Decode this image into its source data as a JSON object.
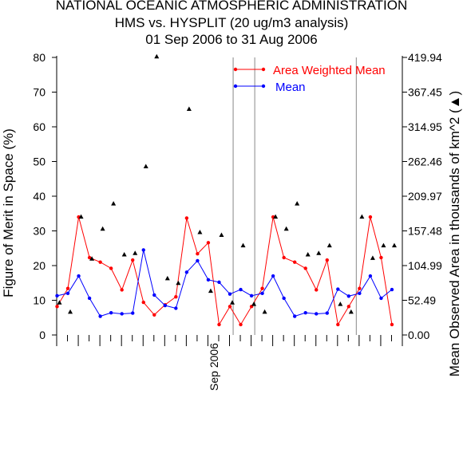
{
  "title": {
    "line1": "NATIONAL OCEANIC ATMOSPHERIC ADMINISTRATION",
    "line2": "HMS vs. HYSPLIT (20 ug/m3 analysis)",
    "line3": "01 Sep 2006 to 31 Aug 2006"
  },
  "chart_data": {
    "type": "line",
    "title": "HMS vs. HYSPLIT (20 ug/m3 analysis)",
    "ylabel": "Figure of Merit in Space (%)",
    "y2label": "Mean Observed Area in thousands of km^2 (▲)",
    "ylim": [
      0,
      80
    ],
    "yticks": [
      0,
      10,
      20,
      30,
      40,
      50,
      60,
      70,
      80
    ],
    "y2lim": [
      0,
      419.94
    ],
    "y2ticks": [
      "0.00",
      "52.49",
      "104.99",
      "157.48",
      "209.97",
      "262.46",
      "314.95",
      "367.45",
      "419.94"
    ],
    "xlim": [
      0,
      32
    ],
    "xtick_label": "Sep 2006",
    "xtick_label_position": 14,
    "vertical_lines": [
      16.3,
      18.3,
      27.7
    ],
    "series": [
      {
        "name": "Area Weighted Mean",
        "color": "#ff0000",
        "x": [
          0,
          1,
          2,
          3,
          4,
          5,
          6,
          7,
          8,
          9,
          10,
          11,
          12,
          13,
          14,
          15,
          16,
          17,
          18,
          19,
          20,
          21,
          22,
          23,
          24,
          25,
          26,
          27,
          28,
          29,
          30,
          31
        ],
        "values": [
          8.2,
          13.4,
          34.0,
          22.3,
          21.0,
          19.2,
          13.0,
          21.6,
          9.4,
          5.8,
          8.7,
          11.0,
          33.7,
          23.4,
          26.6,
          3.0,
          8.2,
          3.0,
          8.2,
          13.4,
          34.0,
          22.3,
          21.0,
          19.2,
          13.0,
          21.6,
          3.0,
          8.2,
          13.4,
          34.0,
          22.3,
          3.0
        ]
      },
      {
        "name": "Mean",
        "color": "#0000ff",
        "x": [
          0,
          1,
          2,
          3,
          4,
          5,
          6,
          7,
          8,
          9,
          10,
          11,
          12,
          13,
          14,
          15,
          16,
          17,
          18,
          19,
          20,
          21,
          22,
          23,
          24,
          25,
          26,
          27,
          28,
          29,
          30,
          31
        ],
        "values": [
          11.3,
          12.0,
          17.0,
          10.6,
          5.4,
          6.4,
          6.1,
          6.3,
          24.5,
          11.5,
          8.5,
          7.7,
          18.1,
          21.4,
          15.9,
          15.2,
          11.8,
          13.1,
          11.3,
          12.0,
          17.0,
          10.6,
          5.4,
          6.4,
          6.1,
          6.3,
          13.2,
          11.2,
          12.0,
          17.0,
          10.6,
          13.1
        ]
      },
      {
        "name": "Mean Observed Area",
        "color": "#000000",
        "marker": "triangle",
        "axis": "right",
        "x": [
          0,
          1,
          2,
          3,
          4,
          5,
          6,
          7,
          8,
          9,
          10,
          11,
          12,
          13,
          14,
          15,
          16,
          17,
          18,
          19,
          20,
          21,
          22,
          23,
          24,
          25,
          26,
          27,
          28,
          29,
          30,
          31
        ],
        "values": [
          48.6,
          34.6,
          178.5,
          115.0,
          160.2,
          198.4,
          121.3,
          123.4,
          254.6,
          420.8,
          85.2,
          78.2,
          341.5,
          155.0,
          66.2,
          150.9,
          48.6,
          135.0,
          46.3,
          34.6,
          178.5,
          160.2,
          198.4,
          121.3,
          123.4,
          135.0,
          46.3,
          34.6,
          178.5,
          116.0,
          135.0,
          135.0
        ]
      }
    ]
  }
}
